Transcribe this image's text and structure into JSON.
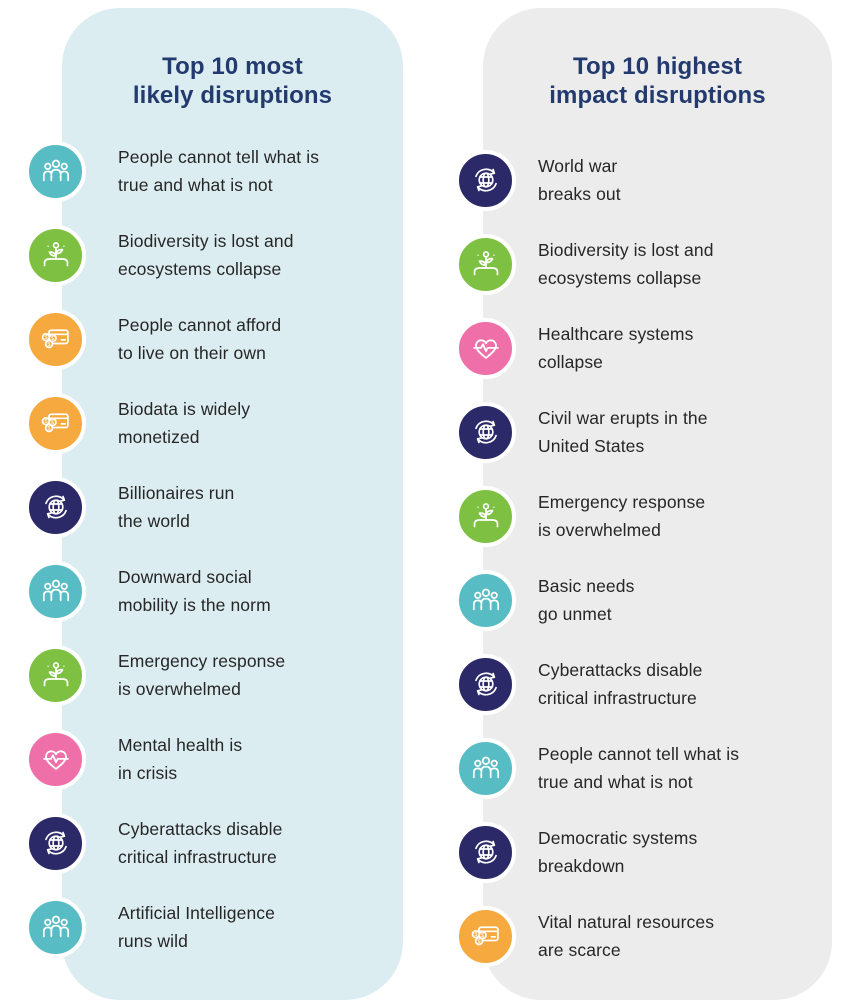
{
  "colors": {
    "panel_left_bg": "#dcedf2",
    "panel_right_bg": "#ececec",
    "title_color": "#223a6d",
    "text_color": "#262626"
  },
  "icon_colors": {
    "people": "#57bcc3",
    "plant": "#7ec142",
    "money": "#f5a93e",
    "globe": "#2b2968",
    "heart": "#ef6fa8"
  },
  "left_panel": {
    "title_line1": "Top 10 most",
    "title_line2": "likely disruptions",
    "items": [
      {
        "icon": "people",
        "line1": "People cannot tell what is",
        "line2": "true and what is not"
      },
      {
        "icon": "plant",
        "line1": "Biodiversity is lost and",
        "line2": "ecosystems collapse"
      },
      {
        "icon": "money",
        "line1": "People cannot afford",
        "line2": "to live on their own"
      },
      {
        "icon": "money",
        "line1": "Biodata is widely",
        "line2": "monetized"
      },
      {
        "icon": "globe",
        "line1": "Billionaires run",
        "line2": "the world"
      },
      {
        "icon": "people",
        "line1": "Downward social",
        "line2": "mobility is the norm"
      },
      {
        "icon": "plant",
        "line1": "Emergency response",
        "line2": "is overwhelmed"
      },
      {
        "icon": "heart",
        "line1": "Mental health is",
        "line2": "in crisis"
      },
      {
        "icon": "globe",
        "line1": "Cyberattacks disable",
        "line2": "critical infrastructure"
      },
      {
        "icon": "people",
        "line1": "Artificial Intelligence",
        "line2": "runs wild"
      }
    ]
  },
  "right_panel": {
    "title_line1": "Top 10 highest",
    "title_line2": "impact disruptions",
    "items": [
      {
        "icon": "globe",
        "line1": "World war",
        "line2": "breaks out"
      },
      {
        "icon": "plant",
        "line1": "Biodiversity is lost and",
        "line2": "ecosystems collapse"
      },
      {
        "icon": "heart",
        "line1": "Healthcare systems",
        "line2": "collapse"
      },
      {
        "icon": "globe",
        "line1": "Civil war erupts in the",
        "line2": "United States"
      },
      {
        "icon": "plant",
        "line1": "Emergency response",
        "line2": "is overwhelmed"
      },
      {
        "icon": "people",
        "line1": "Basic needs",
        "line2": "go unmet"
      },
      {
        "icon": "globe",
        "line1": "Cyberattacks disable",
        "line2": "critical infrastructure"
      },
      {
        "icon": "people",
        "line1": "People cannot tell what is",
        "line2": "true and what is not"
      },
      {
        "icon": "globe",
        "line1": "Democratic systems",
        "line2": "breakdown"
      },
      {
        "icon": "money",
        "line1": "Vital natural resources",
        "line2": "are scarce"
      }
    ]
  }
}
